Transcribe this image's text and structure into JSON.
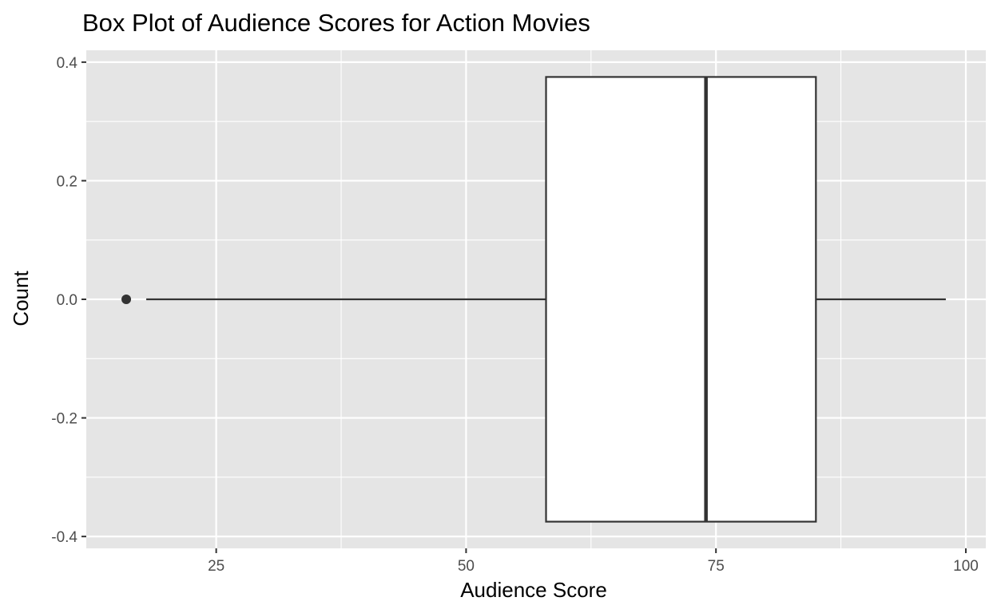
{
  "chart_data": {
    "type": "boxplot",
    "title": "Box Plot of Audience Scores for Action Movies",
    "xlabel": "Audience Score",
    "ylabel": "Count",
    "xlim": [
      12,
      102
    ],
    "ylim": [
      -0.42,
      0.42
    ],
    "x_ticks": [
      25,
      50,
      75,
      100
    ],
    "x_tick_labels": [
      "25",
      "50",
      "75",
      "100"
    ],
    "y_ticks": [
      -0.4,
      -0.2,
      0.0,
      0.2,
      0.4
    ],
    "y_tick_labels": [
      "-0.4",
      "-0.2",
      "0.0",
      "0.2",
      "0.4"
    ],
    "grid": true,
    "box": {
      "whisker_low": 18,
      "q1": 58,
      "median": 74,
      "q3": 85,
      "whisker_high": 98,
      "outliers": [
        16
      ]
    },
    "box_extent_y": [
      -0.375,
      0.375
    ],
    "colors": {
      "panel_background": "#e5e5e5",
      "grid": "#ffffff",
      "box_fill": "#ffffff",
      "box_stroke": "#333333",
      "tick_text": "#4d4d4d"
    }
  }
}
